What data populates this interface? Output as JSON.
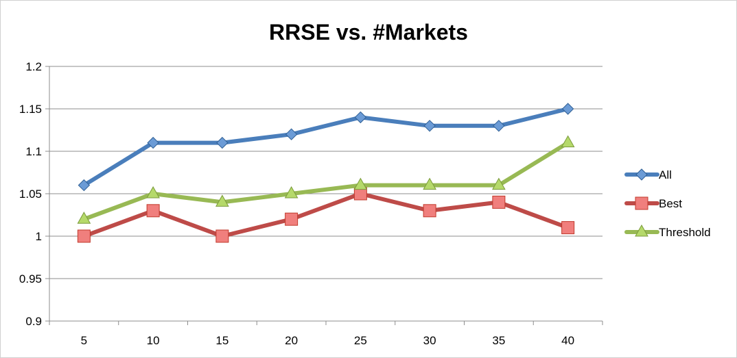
{
  "chart_data": {
    "type": "line",
    "title": "RRSE vs. #Markets",
    "xlabel": "",
    "ylabel": "",
    "categories": [
      "5",
      "10",
      "15",
      "20",
      "25",
      "30",
      "35",
      "40"
    ],
    "ylim": [
      0.9,
      1.2
    ],
    "yticks": [
      "0.9",
      "0.95",
      "1",
      "1.05",
      "1.1",
      "1.15",
      "1.2"
    ],
    "grid": true,
    "legend_position": "right",
    "series": [
      {
        "name": "All",
        "color": "#4a7ebb",
        "marker": "diamond",
        "values": [
          1.06,
          1.11,
          1.11,
          1.12,
          1.14,
          1.13,
          1.13,
          1.15
        ]
      },
      {
        "name": "Best",
        "color": "#be4b48",
        "marker": "square",
        "values": [
          1.0,
          1.03,
          1.0,
          1.02,
          1.05,
          1.03,
          1.04,
          1.01
        ]
      },
      {
        "name": "Threshold",
        "color": "#98b954",
        "marker": "triangle",
        "values": [
          1.02,
          1.05,
          1.04,
          1.05,
          1.06,
          1.06,
          1.06,
          1.11
        ]
      }
    ]
  }
}
